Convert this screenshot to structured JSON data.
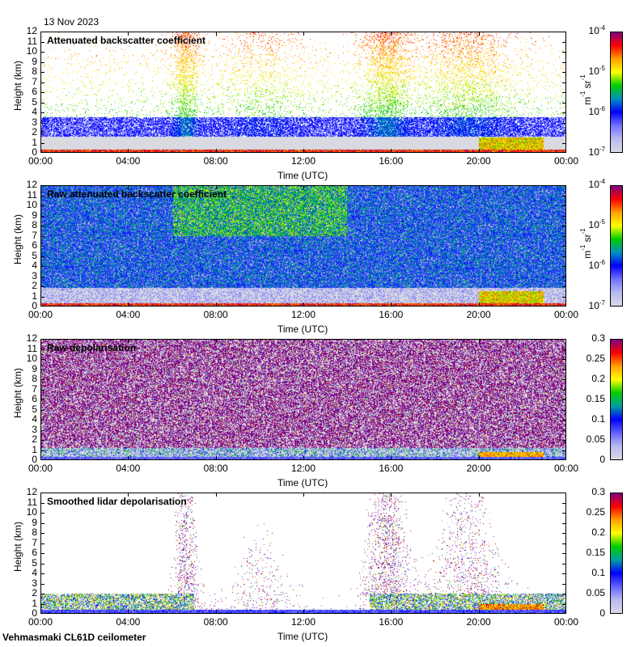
{
  "date": "13 Nov 2023",
  "footer": "Vehmasmaki CL61D ceilometer",
  "colors": {
    "backscatter_scale": [
      "#d9d9e6",
      "#b8b8f0",
      "#7070ff",
      "#0000ff",
      "#0090c0",
      "#00cc00",
      "#ffff00",
      "#ffa000",
      "#ff0000",
      "#800080"
    ],
    "depol_scale": [
      "#d9d9e6",
      "#b8b8f0",
      "#6060ff",
      "#0000ff",
      "#00a0a0",
      "#00cc00",
      "#ffff00",
      "#ffa000",
      "#ff0000",
      "#800080"
    ]
  },
  "chart_data": [
    {
      "type": "heatmap",
      "title": "Attenuated backscatter coefficient",
      "xlabel": "Time (UTC)",
      "ylabel": "Height (km)",
      "x_ticks": [
        "00:00",
        "04:00",
        "08:00",
        "12:00",
        "16:00",
        "20:00",
        "00:00"
      ],
      "y_ticks": [
        "0",
        "1",
        "2",
        "3",
        "4",
        "5",
        "6",
        "7",
        "8",
        "9",
        "10",
        "11",
        "12"
      ],
      "ylim": [
        0,
        12
      ],
      "colorbar": {
        "scale": "log",
        "range": [
          1e-07,
          0.0001
        ],
        "unit_base": "m",
        "unit_exp": "-1",
        "unit_base2": " sr",
        "unit_exp2": "-1",
        "ticks": [
          {
            "base": "10",
            "exp": "-4"
          },
          {
            "base": "10",
            "exp": "-5"
          },
          {
            "base": "10",
            "exp": "-6"
          },
          {
            "base": "10",
            "exp": "-7"
          }
        ]
      },
      "features": [
        {
          "desc": "surface layer high backscatter",
          "time_range_h": [
            0,
            24
          ],
          "height_km": [
            0,
            0.3
          ]
        },
        {
          "desc": "increased signal",
          "time_range_h": [
            6,
            7
          ],
          "height_km": [
            0,
            7
          ]
        },
        {
          "desc": "increased signal",
          "time_range_h": [
            15,
            17
          ],
          "height_km": [
            0,
            9
          ]
        },
        {
          "desc": "boundary layer aerosol",
          "time_range_h": [
            20,
            23
          ],
          "height_km": [
            0,
            1.5
          ]
        }
      ]
    },
    {
      "type": "heatmap",
      "title": "Raw attenuated backscatter coefficient",
      "xlabel": "Time (UTC)",
      "ylabel": "Height (km)",
      "x_ticks": [
        "00:00",
        "04:00",
        "08:00",
        "12:00",
        "16:00",
        "20:00",
        "00:00"
      ],
      "y_ticks": [
        "0",
        "1",
        "2",
        "3",
        "4",
        "5",
        "6",
        "7",
        "8",
        "9",
        "10",
        "11",
        "12"
      ],
      "ylim": [
        0,
        12
      ],
      "colorbar": {
        "scale": "log",
        "range": [
          1e-07,
          0.0001
        ],
        "unit_base": "m",
        "unit_exp": "-1",
        "unit_base2": " sr",
        "unit_exp2": "-1",
        "ticks": [
          {
            "base": "10",
            "exp": "-4"
          },
          {
            "base": "10",
            "exp": "-5"
          },
          {
            "base": "10",
            "exp": "-6"
          },
          {
            "base": "10",
            "exp": "-7"
          }
        ]
      }
    },
    {
      "type": "heatmap",
      "title": "Raw depolarisation",
      "xlabel": "Time (UTC)",
      "ylabel": "Height (km)",
      "x_ticks": [
        "00:00",
        "04:00",
        "08:00",
        "12:00",
        "16:00",
        "20:00",
        "00:00"
      ],
      "y_ticks": [
        "0",
        "1",
        "2",
        "3",
        "4",
        "5",
        "6",
        "7",
        "8",
        "9",
        "10",
        "11",
        "12"
      ],
      "ylim": [
        0,
        12
      ],
      "colorbar": {
        "scale": "linear",
        "range": [
          0,
          0.3
        ],
        "ticks": [
          "0.3",
          "0.25",
          "0.2",
          "0.15",
          "0.1",
          "0.05",
          "0"
        ]
      }
    },
    {
      "type": "heatmap",
      "title": "Smoothed lidar depolarisation",
      "xlabel": "Time (UTC)",
      "ylabel": "Height (km)",
      "x_ticks": [
        "00:00",
        "04:00",
        "08:00",
        "12:00",
        "16:00",
        "20:00",
        "00:00"
      ],
      "y_ticks": [
        "0",
        "1",
        "2",
        "3",
        "4",
        "5",
        "6",
        "7",
        "8",
        "9",
        "10",
        "11",
        "12"
      ],
      "ylim": [
        0,
        12
      ],
      "colorbar": {
        "scale": "linear",
        "range": [
          0,
          0.3
        ],
        "ticks": [
          "0.3",
          "0.25",
          "0.2",
          "0.15",
          "0.1",
          "0.05",
          "0"
        ]
      }
    }
  ]
}
